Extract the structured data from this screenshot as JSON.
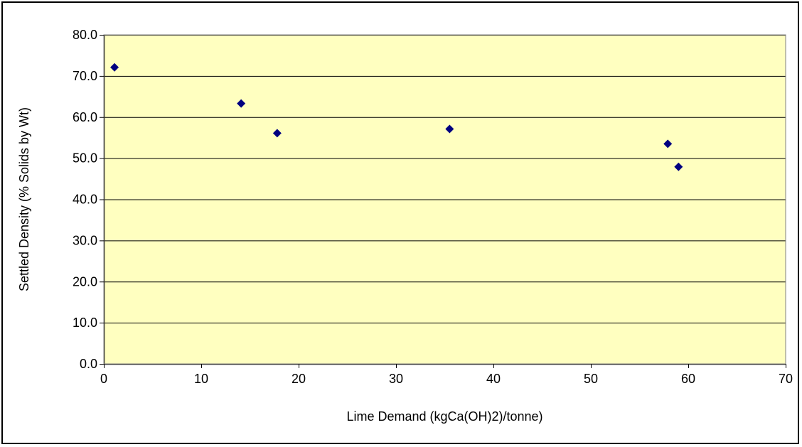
{
  "chart_data": {
    "type": "scatter",
    "title": "",
    "xlabel": "Lime Demand (kgCa(OH)2)/tonne)",
    "ylabel": "Settled Density (% Solids by Wt)",
    "xlim": [
      0,
      70
    ],
    "ylim": [
      0,
      80
    ],
    "x_ticks": [
      0,
      10,
      20,
      30,
      40,
      50,
      60,
      70
    ],
    "x_tick_labels": [
      "0",
      "10",
      "20",
      "30",
      "40",
      "50",
      "60",
      "70"
    ],
    "y_ticks": [
      0,
      10,
      20,
      30,
      40,
      50,
      60,
      70,
      80
    ],
    "y_tick_labels": [
      "0.0",
      "10.0",
      "20.0",
      "30.0",
      "40.0",
      "50.0",
      "60.0",
      "70.0",
      "80.0"
    ],
    "grid": "horizontal",
    "legend": "none",
    "series": [
      {
        "points": [
          {
            "x": 1.1,
            "y": 72.1
          },
          {
            "x": 14.1,
            "y": 63.3
          },
          {
            "x": 17.8,
            "y": 56.1
          },
          {
            "x": 35.5,
            "y": 57.1
          },
          {
            "x": 57.9,
            "y": 53.5
          },
          {
            "x": 59.0,
            "y": 47.9
          }
        ]
      }
    ],
    "colors": {
      "plot_background": "#ffffc0",
      "marker": "#000080",
      "gridline": "#000000",
      "axis": "#000000"
    }
  }
}
